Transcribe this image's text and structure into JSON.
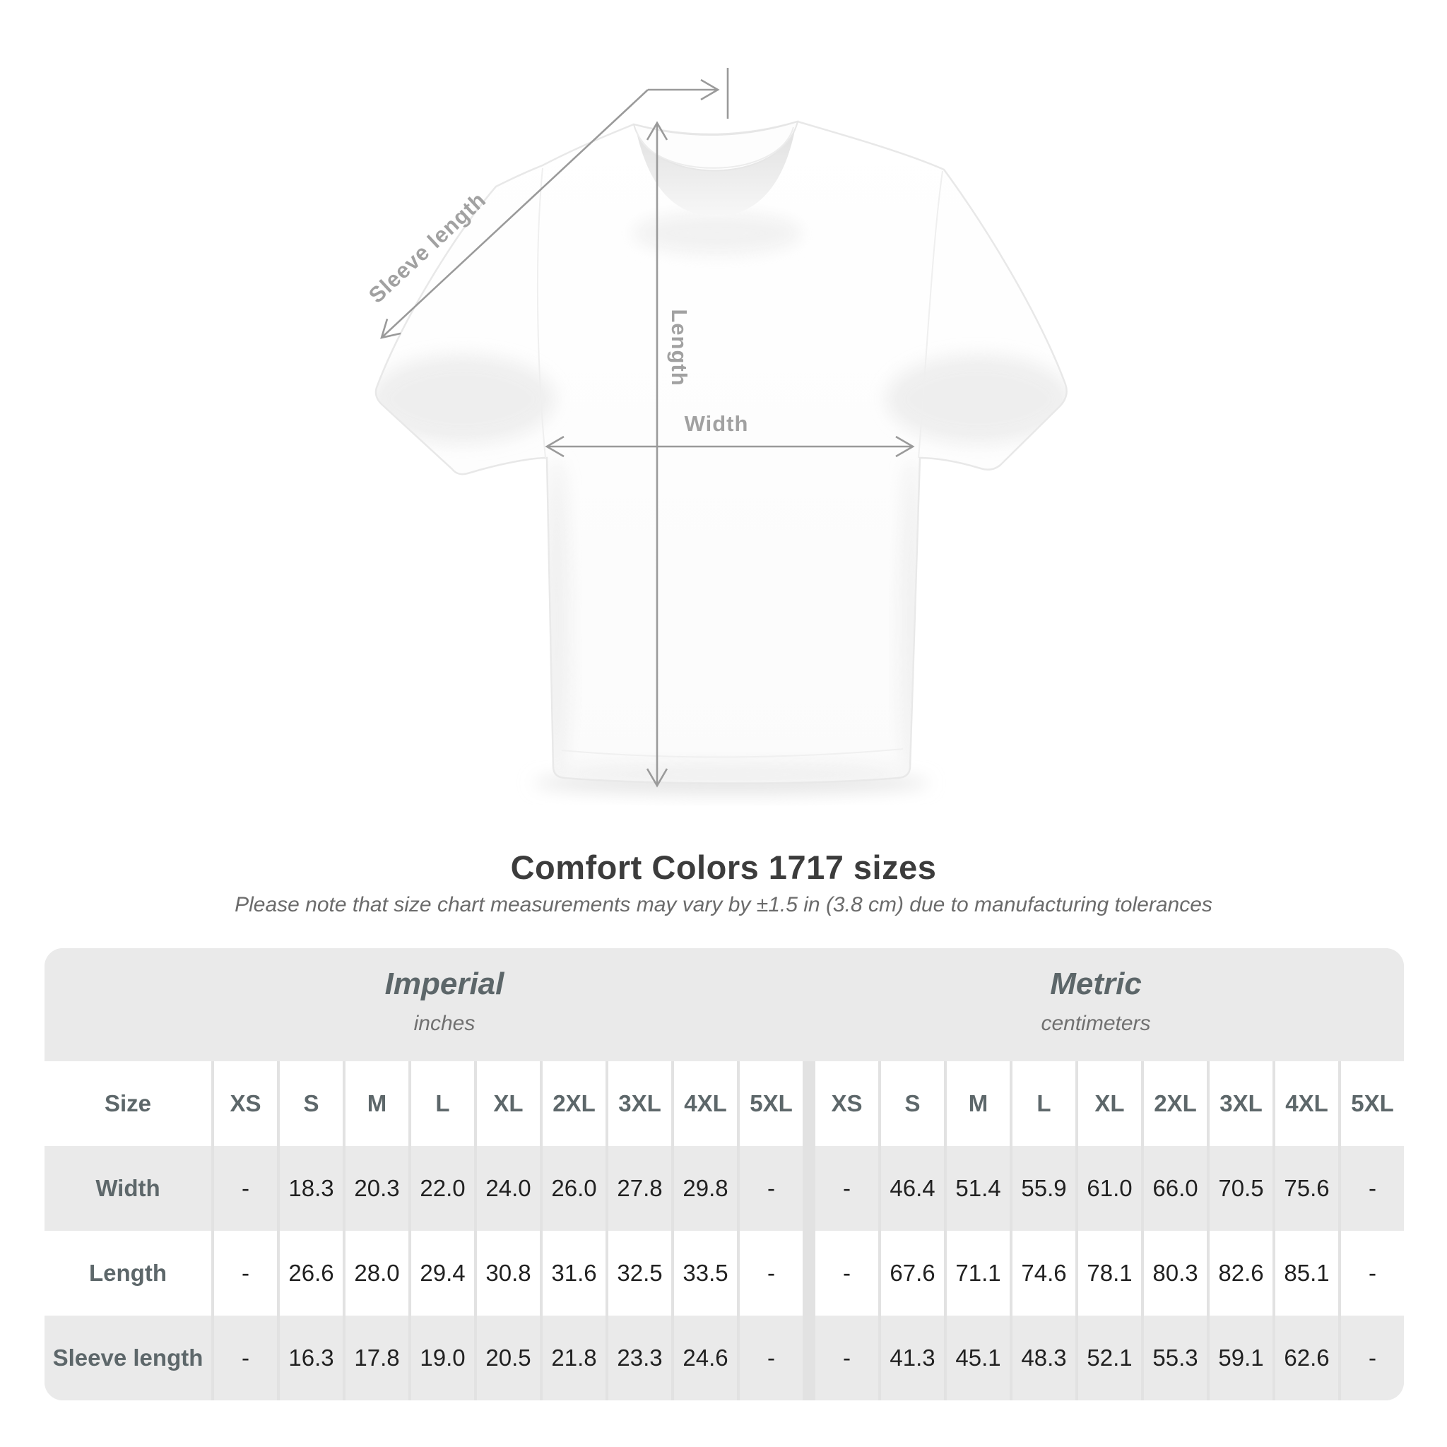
{
  "title": "Comfort Colors 1717 sizes",
  "subtitle": "Please note that size chart measurements may vary by ±1.5 in (3.8 cm) due to manufacturing tolerances",
  "diagram": {
    "sleeve_length_label": "Sleeve length",
    "length_label": "Length",
    "width_label": "Width"
  },
  "table": {
    "groups": [
      {
        "label": "Imperial",
        "sublabel": "inches"
      },
      {
        "label": "Metric",
        "sublabel": "centimeters"
      }
    ],
    "size_header": "Size",
    "sizes": [
      "XS",
      "S",
      "M",
      "L",
      "XL",
      "2XL",
      "3XL",
      "4XL",
      "5XL"
    ],
    "rows": [
      {
        "label": "Width",
        "imperial": [
          "-",
          "18.3",
          "20.3",
          "22.0",
          "24.0",
          "26.0",
          "27.8",
          "29.8",
          "-"
        ],
        "metric": [
          "-",
          "46.4",
          "51.4",
          "55.9",
          "61.0",
          "66.0",
          "70.5",
          "75.6",
          "-"
        ]
      },
      {
        "label": "Length",
        "imperial": [
          "-",
          "26.6",
          "28.0",
          "29.4",
          "30.8",
          "31.6",
          "32.5",
          "33.5",
          "-"
        ],
        "metric": [
          "-",
          "67.6",
          "71.1",
          "74.6",
          "78.1",
          "80.3",
          "82.6",
          "85.1",
          "-"
        ]
      },
      {
        "label": "Sleeve length",
        "imperial": [
          "-",
          "16.3",
          "17.8",
          "19.0",
          "20.5",
          "21.8",
          "23.3",
          "24.6",
          "-"
        ],
        "metric": [
          "-",
          "41.3",
          "45.1",
          "48.3",
          "52.1",
          "55.3",
          "59.1",
          "62.6",
          "-"
        ]
      }
    ]
  },
  "chart_data": {
    "type": "table",
    "title": "Comfort Colors 1717 sizes",
    "note": "Please note that size chart measurements may vary by ±1.5 in (3.8 cm) due to manufacturing tolerances",
    "column_groups": [
      "Imperial (inches)",
      "Metric (centimeters)"
    ],
    "columns": [
      "Size",
      "XS",
      "S",
      "M",
      "L",
      "XL",
      "2XL",
      "3XL",
      "4XL",
      "5XL",
      "XS",
      "S",
      "M",
      "L",
      "XL",
      "2XL",
      "3XL",
      "4XL",
      "5XL"
    ],
    "rows": [
      [
        "Width",
        "-",
        18.3,
        20.3,
        22.0,
        24.0,
        26.0,
        27.8,
        29.8,
        "-",
        "-",
        46.4,
        51.4,
        55.9,
        61.0,
        66.0,
        70.5,
        75.6,
        "-"
      ],
      [
        "Length",
        "-",
        26.6,
        28.0,
        29.4,
        30.8,
        31.6,
        32.5,
        33.5,
        "-",
        "-",
        67.6,
        71.1,
        74.6,
        78.1,
        80.3,
        82.6,
        85.1,
        "-"
      ],
      [
        "Sleeve length",
        "-",
        16.3,
        17.8,
        19.0,
        20.5,
        21.8,
        23.3,
        24.6,
        "-",
        "-",
        41.3,
        45.1,
        48.3,
        52.1,
        55.3,
        59.1,
        62.6,
        "-"
      ]
    ]
  },
  "colors": {
    "annotation_gray": "#9a9a9a",
    "label_gray": "#a1a1a1",
    "header_text": "#5d676a",
    "value_text": "#212121",
    "row_gray": "#eaeaea",
    "divider_gray": "#e2e2e2",
    "title_text": "#3c3c3c"
  }
}
